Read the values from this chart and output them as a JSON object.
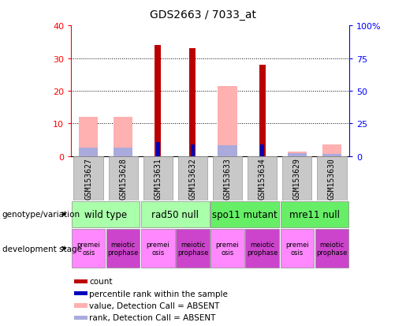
{
  "title": "GDS2663 / 7033_at",
  "samples": [
    "GSM153627",
    "GSM153628",
    "GSM153631",
    "GSM153632",
    "GSM153633",
    "GSM153634",
    "GSM153629",
    "GSM153630"
  ],
  "count": [
    null,
    null,
    34,
    33,
    null,
    28,
    null,
    null
  ],
  "percentile_rank": [
    null,
    null,
    10.5,
    9.0,
    null,
    9.0,
    null,
    null
  ],
  "value_absent": [
    12,
    12,
    null,
    null,
    21.5,
    null,
    1.5,
    3.5
  ],
  "rank_absent": [
    6.5,
    6.5,
    null,
    null,
    8.0,
    null,
    2.0,
    1.5
  ],
  "ylim_left": [
    0,
    40
  ],
  "ylim_right": [
    0,
    100
  ],
  "yticks_left": [
    0,
    10,
    20,
    30,
    40
  ],
  "ytick_labels_right": [
    "0",
    "25",
    "50",
    "75",
    "100%"
  ],
  "count_color": "#BB0000",
  "rank_color": "#0000BB",
  "value_absent_color": "#FFB0B0",
  "rank_absent_color": "#AAAADD",
  "sample_box_color": "#C8C8C8",
  "genotype_groups": [
    {
      "label": "wild type",
      "start": 0,
      "end": 2,
      "color": "#AAFFAA"
    },
    {
      "label": "rad50 null",
      "start": 2,
      "end": 4,
      "color": "#AAFFAA"
    },
    {
      "label": "spo11 mutant",
      "start": 4,
      "end": 6,
      "color": "#66EE66"
    },
    {
      "label": "mre11 null",
      "start": 6,
      "end": 8,
      "color": "#66EE66"
    }
  ],
  "dev_stage_groups": [
    {
      "label": "premei\nosis",
      "color": "#FF88FF"
    },
    {
      "label": "meiotic\nprophase",
      "color": "#CC44CC"
    },
    {
      "label": "premei\nosis",
      "color": "#FF88FF"
    },
    {
      "label": "meiotic\nprophase",
      "color": "#CC44CC"
    },
    {
      "label": "premei\nosis",
      "color": "#FF88FF"
    },
    {
      "label": "meiotic\nprophase",
      "color": "#CC44CC"
    },
    {
      "label": "premei\nosis",
      "color": "#FF88FF"
    },
    {
      "label": "meiotic\nprophase",
      "color": "#CC44CC"
    }
  ],
  "legend_items": [
    {
      "label": "count",
      "color": "#BB0000"
    },
    {
      "label": "percentile rank within the sample",
      "color": "#0000BB"
    },
    {
      "label": "value, Detection Call = ABSENT",
      "color": "#FFB0B0"
    },
    {
      "label": "rank, Detection Call = ABSENT",
      "color": "#AAAADD"
    }
  ]
}
